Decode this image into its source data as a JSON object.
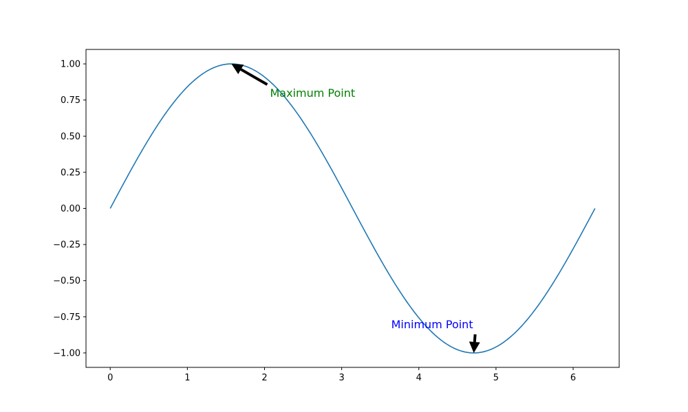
{
  "chart_data": {
    "type": "line",
    "title": "",
    "xlabel": "",
    "ylabel": "",
    "xlim": [
      -0.314,
      6.597
    ],
    "ylim": [
      -1.1,
      1.1
    ],
    "grid": false,
    "legend": "none",
    "x_ticks": [
      {
        "value": 0,
        "label": "0"
      },
      {
        "value": 1,
        "label": "1"
      },
      {
        "value": 2,
        "label": "2"
      },
      {
        "value": 3,
        "label": "3"
      },
      {
        "value": 4,
        "label": "4"
      },
      {
        "value": 5,
        "label": "5"
      },
      {
        "value": 6,
        "label": "6"
      }
    ],
    "y_ticks": [
      {
        "value": 1.0,
        "label": "1.00"
      },
      {
        "value": 0.75,
        "label": "0.75"
      },
      {
        "value": 0.5,
        "label": "0.50"
      },
      {
        "value": 0.25,
        "label": "0.25"
      },
      {
        "value": 0.0,
        "label": "0.00"
      },
      {
        "value": -0.25,
        "label": "−0.25"
      },
      {
        "value": -0.5,
        "label": "−0.50"
      },
      {
        "value": -0.75,
        "label": "−0.75"
      },
      {
        "value": -1.0,
        "label": "−1.00"
      }
    ],
    "series": [
      {
        "color": "#1f77b4",
        "x": [
          0,
          0.2,
          0.4,
          0.6,
          0.8,
          1.0,
          1.2,
          1.4,
          1.571,
          1.8,
          2.0,
          2.2,
          2.4,
          2.6,
          2.8,
          3.0,
          3.142,
          3.4,
          3.6,
          3.8,
          4.0,
          4.2,
          4.4,
          4.712,
          5.0,
          5.2,
          5.4,
          5.6,
          5.8,
          6.0,
          6.283
        ],
        "y": [
          0.0,
          0.199,
          0.389,
          0.565,
          0.717,
          0.841,
          0.932,
          0.985,
          1.0,
          0.974,
          0.909,
          0.808,
          0.675,
          0.516,
          0.335,
          0.141,
          0.0,
          -0.256,
          -0.443,
          -0.612,
          -0.757,
          -0.872,
          -0.952,
          -1.0,
          -0.959,
          -0.883,
          -0.773,
          -0.631,
          -0.465,
          -0.279,
          0.0
        ]
      }
    ],
    "annotations": [
      {
        "text": "Maximum Point",
        "color": "#008000",
        "point": [
          1.571,
          1.0
        ],
        "text_pos": [
          2.071,
          0.8
        ]
      },
      {
        "text": "Minimum Point",
        "color": "#0000ff",
        "point": [
          4.712,
          -1.0
        ],
        "text_pos": [
          3.642,
          -0.8
        ]
      }
    ]
  }
}
